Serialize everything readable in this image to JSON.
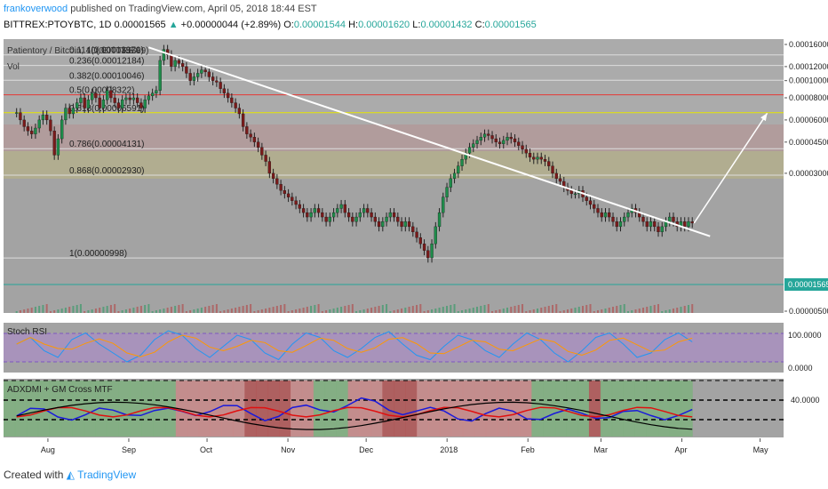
{
  "header": {
    "author": "frankoverwood",
    "published_text": "published on TradingView.com, April 05, 2018 18:44 EST",
    "symbol": "BITTREX:PTOYBTC, 1D",
    "last": "0.00001565",
    "change": "+0.00000044 (+2.89%)",
    "o_label": "O:",
    "o": "0.00001544",
    "h_label": "H:",
    "h": "0.00001620",
    "l_label": "L:",
    "l": "0.00001432",
    "c_label": "C:",
    "c": "0.00001565"
  },
  "footer": {
    "created_with": "Created with",
    "logo_text": "TradingView"
  },
  "main_pane": {
    "title": "Patientory / Bitcoin, 1D, BITTREX",
    "vol_label": "Vol",
    "price_badge": "0.00001565",
    "price_axis": [
      "0.00016000",
      "0.00012000",
      "0.00010000",
      "0.00008000",
      "0.00006000",
      "0.00004500",
      "0.00003000",
      "0.00001565",
      "0.00000500"
    ],
    "fib_levels": [
      {
        "label": "0.114(0.00013970)",
        "value": 0.0001397
      },
      {
        "label": "0.236(0.00012184)",
        "value": 0.00012184
      },
      {
        "label": "0.382(0.00010046)",
        "value": 0.00010046
      },
      {
        "label": "0.5(0.00008322)",
        "value": 8.322e-05
      },
      {
        "label": "0.618(0.00006591)",
        "value": 6.591e-05
      },
      {
        "label": "0.786(0.00004131)",
        "value": 4.131e-05
      },
      {
        "label": "0.868(0.00002930)",
        "value": 2.93e-05
      },
      {
        "label": "1(0.00000998)",
        "value": 9.98e-06
      }
    ],
    "top_fib_label": "(0.00015639)"
  },
  "stoch_pane": {
    "title": "Stoch RSI",
    "axis": [
      "100.0000",
      "0.0000"
    ]
  },
  "adx_pane": {
    "title": "ADXDMI + GM Cross MTF",
    "axis": [
      "40.0000"
    ]
  },
  "time_axis": [
    "Aug",
    "Sep",
    "Oct",
    "Nov",
    "Dec",
    "2018",
    "Feb",
    "Mar",
    "Apr",
    "May"
  ],
  "colors": {
    "up": "#26a69a",
    "down": "#ef5350",
    "accent": "#2196f3"
  },
  "chart_data": {
    "type": "candlestick",
    "title": "Patientory / Bitcoin, 1D, BITTREX",
    "x_range": [
      "2017-07-15",
      "2018-05-10"
    ],
    "y_scale": "log",
    "y_range": [
      5e-06,
      0.00016
    ],
    "closes": [
      6.6e-05,
      6e-05,
      5.5e-05,
      5.2e-05,
      5e-05,
      5.4e-05,
      6e-05,
      6.4e-05,
      6e-05,
      5.2e-05,
      3.8e-05,
      4.7e-05,
      6e-05,
      7e-05,
      6.5e-05,
      7e-05,
      7.5e-05,
      8e-05,
      7e-05,
      7.8e-05,
      8.5e-05,
      8e-05,
      7e-05,
      7.8e-05,
      8.8e-05,
      8e-05,
      7.5e-05,
      7e-05,
      7.8e-05,
      8e-05,
      7.8e-05,
      8e-05,
      7.5e-05,
      7e-05,
      7.8e-05,
      8.2e-05,
      8.5e-05,
      8.8e-05,
      0.00013,
      0.00015,
      0.00014,
      0.00012,
      0.00013,
      0.000125,
      0.00012,
      0.00011,
      0.0001,
      0.000105,
      0.00011,
      0.000115,
      0.000112,
      0.000105,
      0.0001,
      9.8e-05,
      9e-05,
      8.5e-05,
      8e-05,
      7.5e-05,
      7e-05,
      6.5e-05,
      5.5e-05,
      5e-05,
      4.8e-05,
      4.5e-05,
      4.2e-05,
      3.8e-05,
      3.5e-05,
      3e-05,
      2.8e-05,
      2.6e-05,
      2.4e-05,
      2.3e-05,
      2.2e-05,
      2.1e-05,
      2e-05,
      1.9e-05,
      1.8e-05,
      1.7e-05,
      1.8e-05,
      1.9e-05,
      1.8e-05,
      1.7e-05,
      1.6e-05,
      1.7e-05,
      1.8e-05,
      1.9e-05,
      2e-05,
      1.8e-05,
      1.7e-05,
      1.6e-05,
      1.7e-05,
      1.8e-05,
      1.9e-05,
      1.8e-05,
      1.7e-05,
      1.6e-05,
      1.5e-05,
      1.6e-05,
      1.7e-05,
      1.8e-05,
      1.7e-05,
      1.6e-05,
      1.5e-05,
      1.6e-05,
      1.5e-05,
      1.4e-05,
      1.3e-05,
      1.2e-05,
      1.1e-05,
      1e-05,
      1.2e-05,
      1.5e-05,
      1.8e-05,
      2.2e-05,
      2.5e-05,
      2.8e-05,
      3e-05,
      3.3e-05,
      3.6e-05,
      3.9e-05,
      4.2e-05,
      4.4e-05,
      4.6e-05,
      4.8e-05,
      5e-05,
      4.9e-05,
      4.7e-05,
      4.5e-05,
      4.4e-05,
      4.6e-05,
      4.8e-05,
      4.7e-05,
      4.5e-05,
      4.3e-05,
      4.1e-05,
      3.9e-05,
      3.7e-05,
      3.6e-05,
      3.7e-05,
      3.6e-05,
      3.5e-05,
      3.3e-05,
      3e-05,
      2.8e-05,
      2.7e-05,
      2.5e-05,
      2.4e-05,
      2.3e-05,
      2.3e-05,
      2.4e-05,
      2.2e-05,
      2.1e-05,
      2e-05,
      1.9e-05,
      1.8e-05,
      1.7e-05,
      1.8e-05,
      1.7e-05,
      1.6e-05,
      1.5e-05,
      1.6e-05,
      1.7e-05,
      1.8e-05,
      1.9e-05,
      1.8e-05,
      1.7e-05,
      1.6e-05,
      1.5e-05,
      1.6e-05,
      1.5e-05,
      1.4e-05,
      1.5e-05,
      1.6e-05,
      1.7e-05,
      1.6e-05,
      1.5e-05,
      1.6e-05,
      1.5e-05,
      1.6e-05,
      1.57e-05
    ],
    "trendline": {
      "from": [
        "2017-09-10",
        0.000154
      ],
      "to": [
        "2018-04-05",
        1.42e-05
      ]
    },
    "arrow": {
      "from": [
        "2018-04-05",
        1.57e-05
      ],
      "to": [
        "2018-05-01",
        6.55e-05
      ]
    },
    "stoch_k": [
      60,
      75,
      45,
      30,
      70,
      85,
      60,
      40,
      20,
      35,
      70,
      90,
      80,
      50,
      30,
      55,
      80,
      70,
      40,
      25,
      60,
      85,
      75,
      45,
      30,
      50,
      75,
      88,
      60,
      35,
      25,
      55,
      80,
      70,
      45,
      30,
      60,
      85,
      70,
      40,
      20,
      45,
      75,
      85,
      60,
      30,
      40,
      70,
      85,
      65
    ],
    "adx": [
      22,
      24,
      26,
      25,
      23,
      22,
      24,
      26,
      28,
      27,
      25,
      24,
      26,
      28,
      30,
      29,
      27,
      25,
      23,
      24,
      26,
      28,
      30,
      32,
      34,
      35,
      33,
      31,
      29,
      27,
      25,
      24,
      23,
      22,
      23,
      24,
      25,
      24,
      23,
      22,
      23,
      24,
      25,
      24,
      23,
      22,
      23,
      24,
      25,
      24
    ]
  }
}
